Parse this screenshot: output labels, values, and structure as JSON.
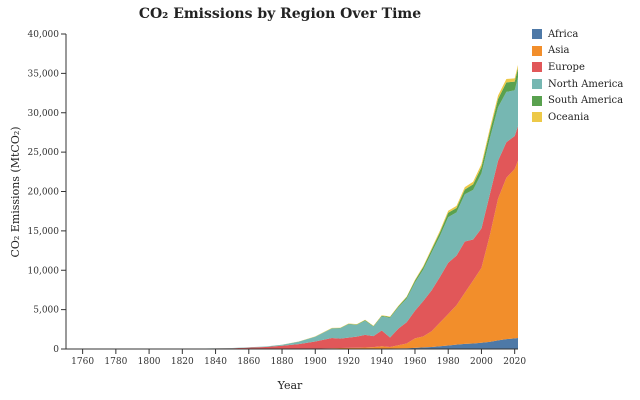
{
  "chart_data": {
    "type": "area",
    "stacked": true,
    "title": "CO₂ Emissions by Region Over Time",
    "xlabel": "Year",
    "ylabel": "CO₂ Emissions (MtCO₂)",
    "xlim": [
      1750,
      2022
    ],
    "ylim": [
      0,
      40000
    ],
    "x_ticks": [
      "1760",
      "1780",
      "1800",
      "1820",
      "1840",
      "1860",
      "1880",
      "1900",
      "1920",
      "1940",
      "1960",
      "1980",
      "2000",
      "2020"
    ],
    "y_ticks": [
      "0",
      "5,000",
      "10,000",
      "15,000",
      "20,000",
      "25,000",
      "30,000",
      "35,000",
      "40,000"
    ],
    "legend_position": "top-right",
    "grid": false,
    "x": [
      1750,
      1800,
      1830,
      1850,
      1870,
      1880,
      1890,
      1900,
      1910,
      1915,
      1920,
      1925,
      1930,
      1935,
      1940,
      1945,
      1950,
      1955,
      1960,
      1965,
      1970,
      1975,
      1980,
      1985,
      1990,
      1995,
      2000,
      2005,
      2010,
      2015,
      2020,
      2022
    ],
    "series": [
      {
        "name": "Africa",
        "color": "#4e79a7",
        "values": [
          0,
          0,
          0,
          0,
          0,
          0,
          0,
          10,
          20,
          25,
          30,
          35,
          40,
          40,
          50,
          60,
          80,
          100,
          150,
          200,
          250,
          350,
          450,
          550,
          650,
          700,
          800,
          900,
          1100,
          1250,
          1350,
          1400
        ]
      },
      {
        "name": "Asia",
        "color": "#f28e2b",
        "values": [
          0,
          0,
          0,
          0,
          5,
          10,
          20,
          40,
          80,
          100,
          110,
          130,
          150,
          200,
          300,
          200,
          400,
          600,
          1200,
          1400,
          2000,
          3000,
          4000,
          5000,
          6500,
          8000,
          9500,
          13500,
          18000,
          20500,
          21500,
          22500
        ]
      },
      {
        "name": "Europe",
        "color": "#e15759",
        "values": [
          0,
          15,
          50,
          100,
          250,
          400,
          600,
          900,
          1300,
          1200,
          1300,
          1400,
          1600,
          1400,
          2000,
          1200,
          2100,
          2700,
          3500,
          4500,
          5200,
          5800,
          6500,
          6300,
          6500,
          5200,
          5000,
          5200,
          4800,
          4500,
          4200,
          4400
        ]
      },
      {
        "name": "North America",
        "color": "#76b7b2",
        "values": [
          0,
          0,
          5,
          20,
          60,
          120,
          300,
          600,
          1200,
          1300,
          1700,
          1500,
          1800,
          1200,
          1800,
          2500,
          2700,
          3000,
          3600,
          4000,
          4800,
          5200,
          5800,
          5500,
          6000,
          6300,
          7000,
          7100,
          6800,
          6400,
          5800,
          6200
        ]
      },
      {
        "name": "South America",
        "color": "#59a14f",
        "values": [
          0,
          0,
          0,
          0,
          0,
          5,
          10,
          20,
          40,
          40,
          50,
          50,
          70,
          70,
          80,
          100,
          130,
          180,
          230,
          300,
          350,
          450,
          550,
          550,
          600,
          700,
          800,
          850,
          1050,
          1200,
          1100,
          1150
        ]
      },
      {
        "name": "Oceania",
        "color": "#edc948",
        "values": [
          0,
          0,
          0,
          0,
          5,
          10,
          20,
          30,
          40,
          40,
          40,
          50,
          50,
          50,
          60,
          60,
          80,
          90,
          110,
          140,
          180,
          220,
          260,
          280,
          300,
          340,
          380,
          420,
          440,
          440,
          420,
          420
        ]
      }
    ]
  }
}
